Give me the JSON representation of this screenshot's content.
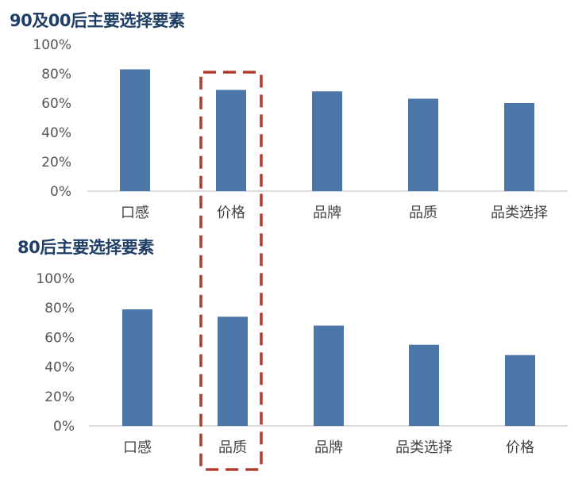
{
  "chart_data": [
    {
      "type": "bar",
      "title": "90及00后主要选择要素",
      "categories": [
        "口感",
        "价格",
        "品牌",
        "品质",
        "品类选择"
      ],
      "values": [
        83,
        69,
        68,
        63,
        60
      ],
      "ylim": [
        0,
        100
      ],
      "ytick_labels": [
        "0%",
        "20%",
        "40%",
        "60%",
        "80%",
        "100%"
      ],
      "color": "#4a76a8",
      "grid": false
    },
    {
      "type": "bar",
      "title": "80后主要选择要素",
      "categories": [
        "口感",
        "品质",
        "品牌",
        "品类选择",
        "价格"
      ],
      "values": [
        79,
        74,
        68,
        55,
        48
      ],
      "ylim": [
        0,
        100
      ],
      "ytick_labels": [
        "0%",
        "20%",
        "40%",
        "60%",
        "80%",
        "100%"
      ],
      "color": "#4a76a8",
      "grid": false
    }
  ],
  "highlight_color": "#b03a2e"
}
